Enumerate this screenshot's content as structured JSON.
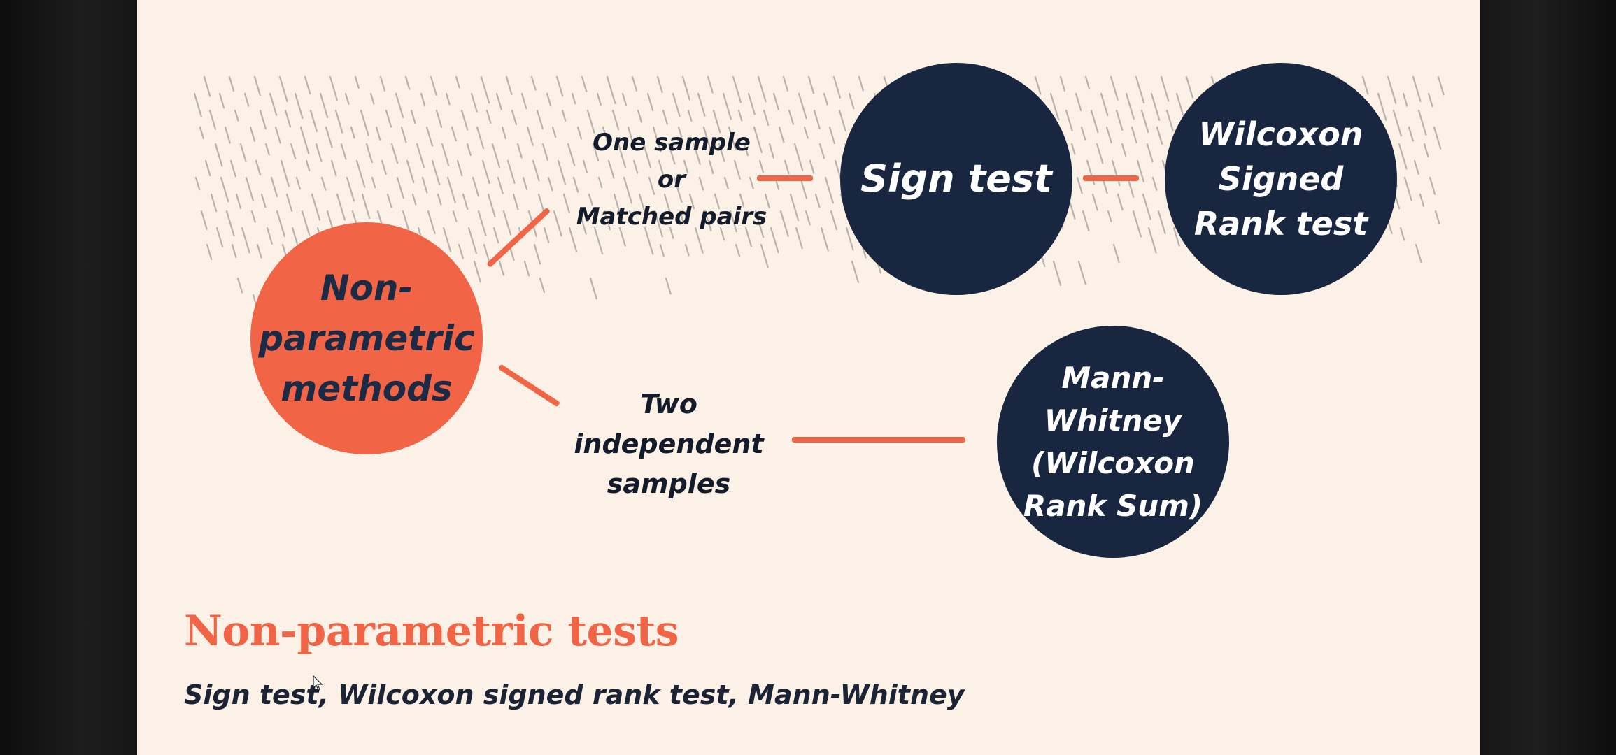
{
  "slide": {
    "title": "Non-parametric tests",
    "subtitle": "Sign test, Wilcoxon signed rank test, Mann-Whitney"
  },
  "diagram": {
    "root": {
      "lines": [
        "Non-",
        "parametric",
        "methods"
      ]
    },
    "branch_one": {
      "lines": [
        "One sample",
        "or",
        "Matched pairs"
      ]
    },
    "branch_two": {
      "lines": [
        "Two",
        "independent",
        "samples"
      ]
    },
    "sign_test": {
      "lines": [
        "Sign test"
      ]
    },
    "wilcoxon_signed": {
      "lines": [
        "Wilcoxon",
        "Signed",
        "Rank test"
      ]
    },
    "mann_whitney": {
      "lines": [
        "Mann-",
        "Whitney",
        "(Wilcoxon",
        "Rank Sum)"
      ]
    }
  },
  "colors": {
    "accent": "#f26446",
    "navy": "#182640",
    "background": "#fbf1e6",
    "text_dark": "#1b2335"
  },
  "icons": [
    "mouse-cursor-icon"
  ]
}
